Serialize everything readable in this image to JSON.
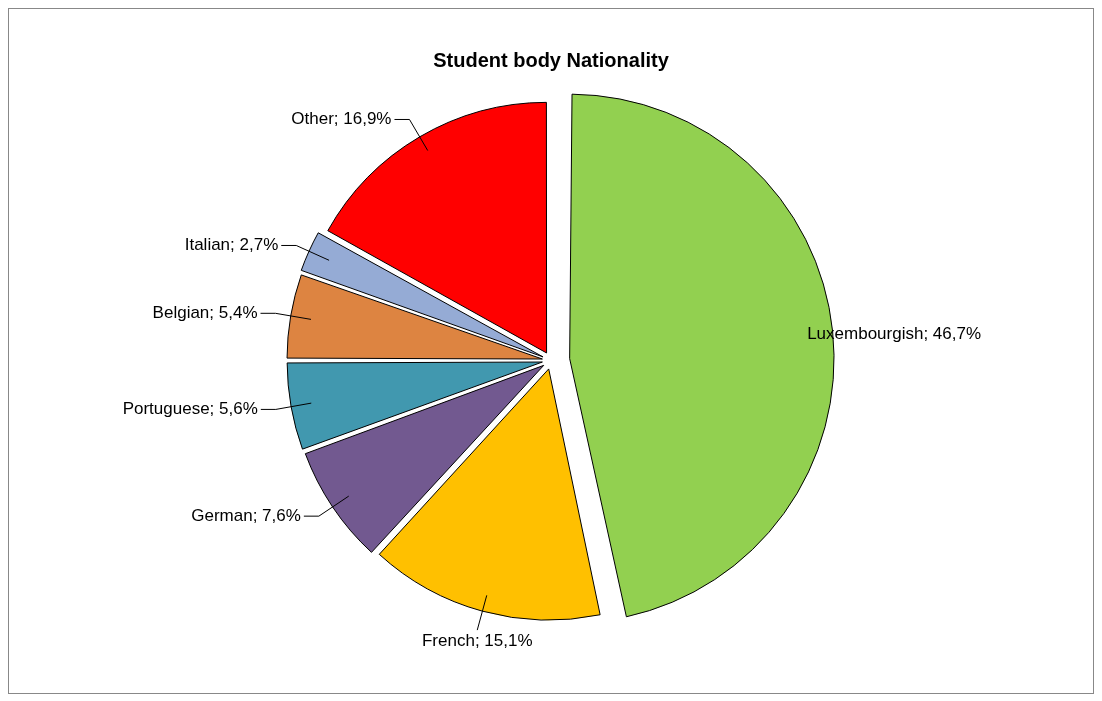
{
  "chart_data": {
    "type": "pie",
    "title": "Student body Nationality",
    "categories": [
      "Luxembourgish",
      "French",
      "German",
      "Portuguese",
      "Belgian",
      "Italian",
      "Other"
    ],
    "values": [
      46.7,
      15.1,
      7.6,
      5.6,
      5.4,
      2.7,
      16.9
    ],
    "value_labels": [
      "46,7%",
      "15,1%",
      "7,6%",
      "5,6%",
      "5,4%",
      "2,7%",
      "16,9%"
    ],
    "colors": [
      "#92d050",
      "#ffc000",
      "#725990",
      "#4198af",
      "#dd8441",
      "#95abd5",
      "#ff0000"
    ],
    "legend": false
  }
}
